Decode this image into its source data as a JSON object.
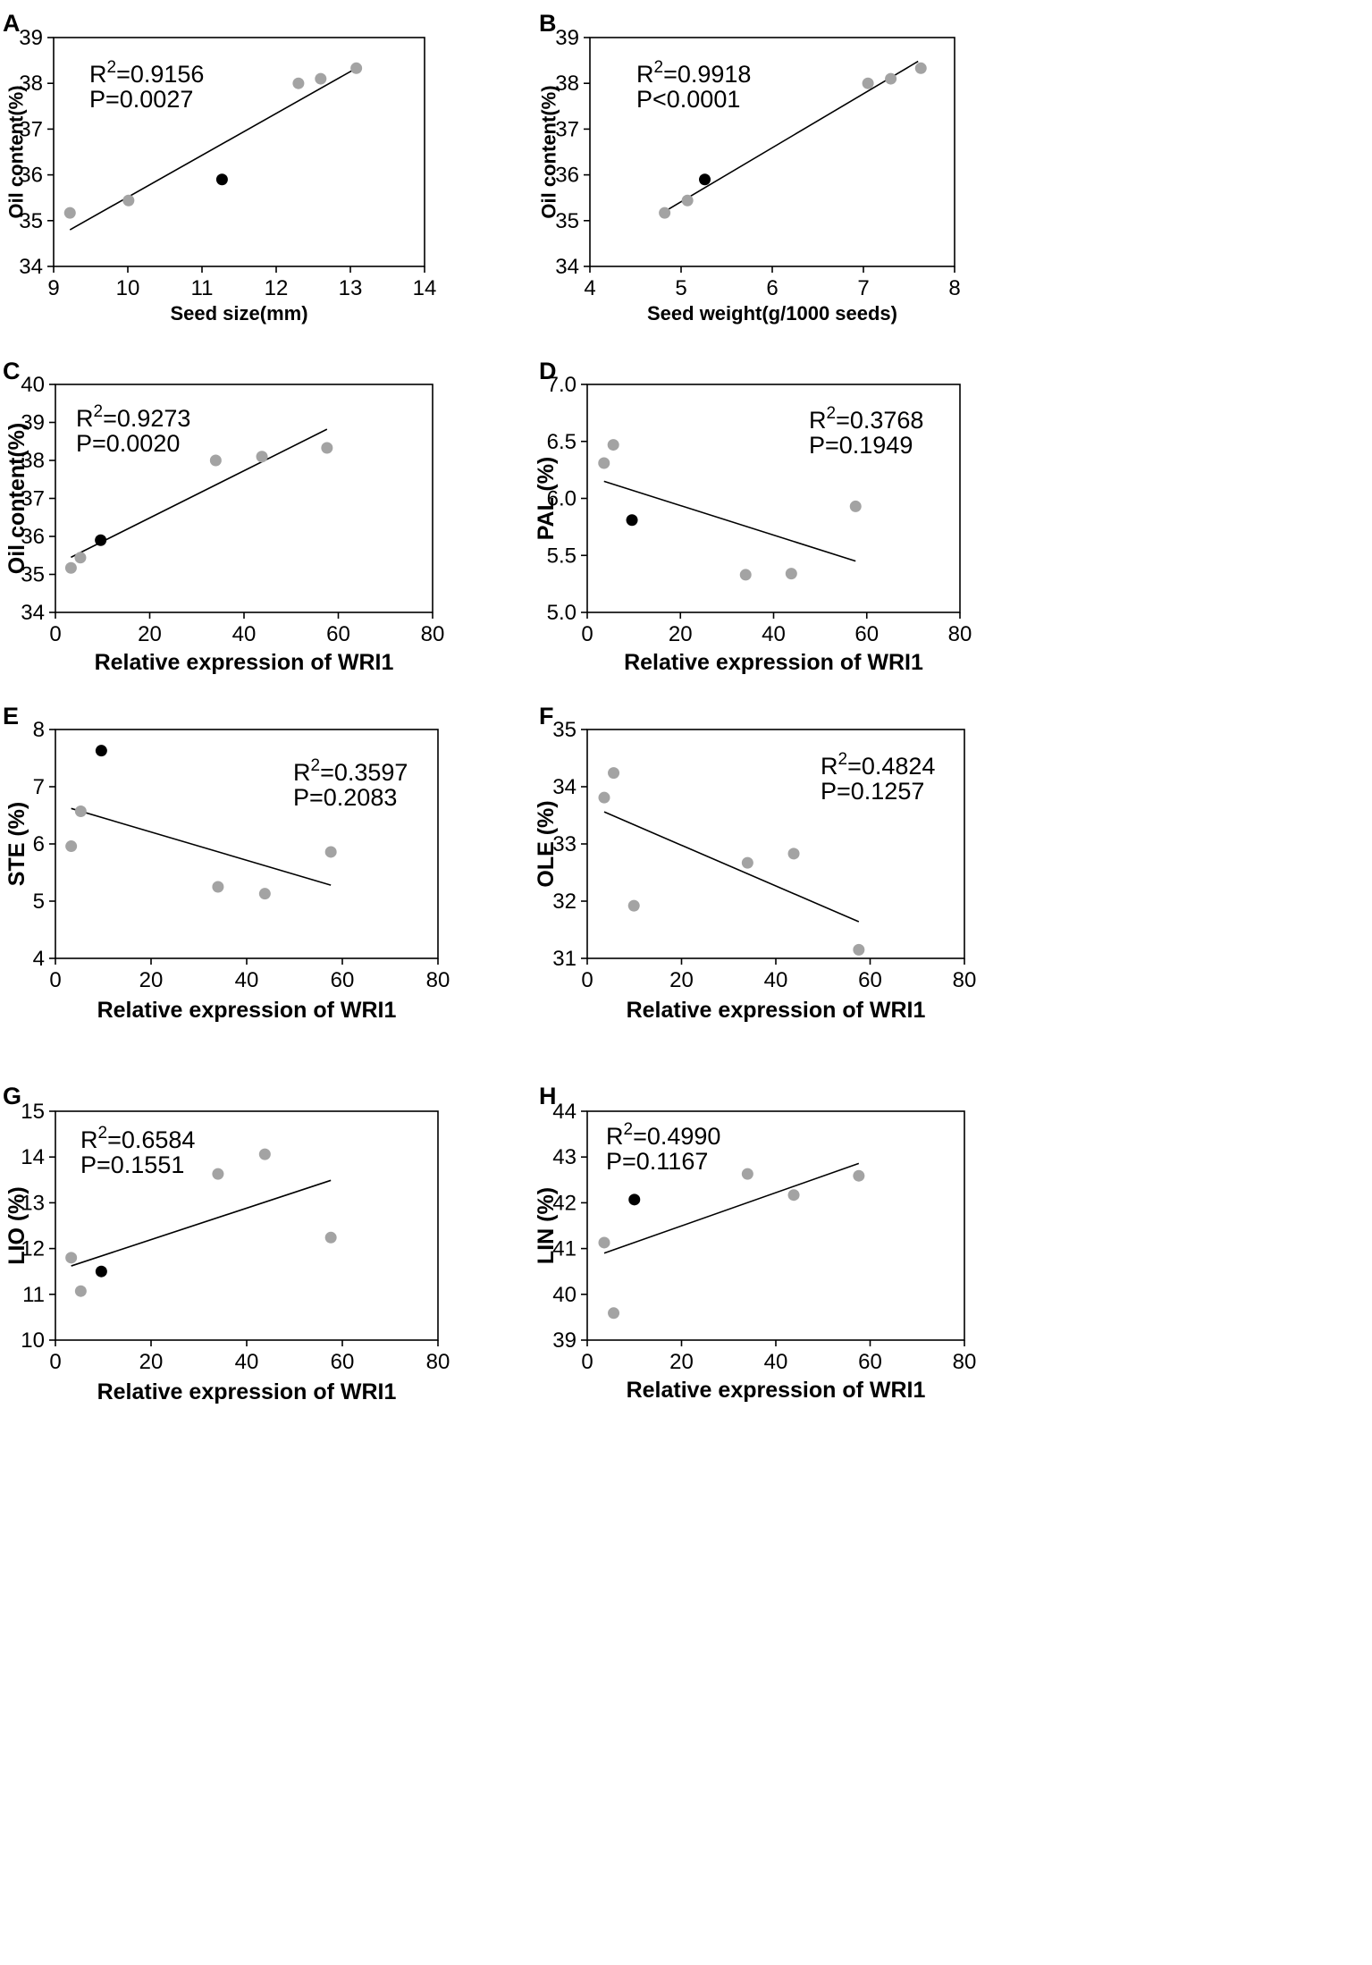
{
  "figure": {
    "colors": {
      "gray_point": "#a3a3a3",
      "black_point": "#000000",
      "axis": "#000000",
      "line": "#000000"
    }
  },
  "chart_data": [
    {
      "panel": "A",
      "type": "scatter",
      "xlabel": "Seed size(mm)",
      "ylabel": "Oil content(%)",
      "xlim": [
        9,
        14
      ],
      "ylim": [
        34,
        39
      ],
      "xticks": [
        9,
        10,
        11,
        12,
        13,
        14
      ],
      "yticks": [
        34,
        35,
        36,
        37,
        38,
        39
      ],
      "points": [
        {
          "x": 9.22,
          "y": 35.17,
          "highlight": false
        },
        {
          "x": 10.01,
          "y": 35.44,
          "highlight": false
        },
        {
          "x": 11.27,
          "y": 35.9,
          "highlight": true
        },
        {
          "x": 12.3,
          "y": 38.0,
          "highlight": false
        },
        {
          "x": 12.6,
          "y": 38.1,
          "highlight": false
        },
        {
          "x": 13.08,
          "y": 38.33,
          "highlight": false
        }
      ],
      "fit": {
        "x1": 9.22,
        "y1": 34.8,
        "x2": 13.08,
        "y2": 38.33
      },
      "r2_label": "R²=0.9156",
      "p_label": "P=0.0027"
    },
    {
      "panel": "B",
      "type": "scatter",
      "xlabel": "Seed weight(g/1000 seeds)",
      "ylabel": "Oil content(%)",
      "xlim": [
        4,
        8
      ],
      "ylim": [
        34,
        39
      ],
      "xticks": [
        4,
        5,
        6,
        7,
        8
      ],
      "yticks": [
        34,
        35,
        36,
        37,
        38,
        39
      ],
      "points": [
        {
          "x": 4.82,
          "y": 35.17,
          "highlight": false
        },
        {
          "x": 5.07,
          "y": 35.44,
          "highlight": false
        },
        {
          "x": 5.26,
          "y": 35.9,
          "highlight": true
        },
        {
          "x": 7.05,
          "y": 38.0,
          "highlight": false
        },
        {
          "x": 7.3,
          "y": 38.1,
          "highlight": false
        },
        {
          "x": 7.63,
          "y": 38.33,
          "highlight": false
        }
      ],
      "fit": {
        "x1": 4.82,
        "y1": 35.2,
        "x2": 7.6,
        "y2": 38.48
      },
      "r2_label": "R²=0.9918",
      "p_label": "P<0.0001"
    },
    {
      "panel": "C",
      "type": "scatter",
      "xlabel": "Relative expression of WRI1",
      "ylabel": "Oil content(%)",
      "xlim": [
        0,
        80
      ],
      "ylim": [
        34,
        40
      ],
      "xticks": [
        0,
        20,
        40,
        60,
        80
      ],
      "yticks": [
        34,
        35,
        36,
        37,
        38,
        39,
        40
      ],
      "points": [
        {
          "x": 3.3,
          "y": 35.17,
          "highlight": false
        },
        {
          "x": 5.3,
          "y": 35.44,
          "highlight": false
        },
        {
          "x": 9.6,
          "y": 35.9,
          "highlight": true
        },
        {
          "x": 34.0,
          "y": 38.0,
          "highlight": false
        },
        {
          "x": 43.8,
          "y": 38.1,
          "highlight": false
        },
        {
          "x": 57.6,
          "y": 38.33,
          "highlight": false
        }
      ],
      "fit": {
        "x1": 3.3,
        "y1": 35.45,
        "x2": 57.6,
        "y2": 38.82
      },
      "r2_label": "R²=0.9273",
      "p_label": "P=0.0020"
    },
    {
      "panel": "D",
      "type": "scatter",
      "xlabel": "Relative expression of WRI1",
      "ylabel": "PAL (%)",
      "xlim": [
        0,
        80
      ],
      "ylim": [
        5.0,
        7.0
      ],
      "xticks": [
        0,
        20,
        40,
        60,
        80
      ],
      "yticks": [
        5.0,
        5.5,
        6.0,
        6.5,
        7.0
      ],
      "ytick_decimals": 1,
      "points": [
        {
          "x": 3.6,
          "y": 6.31,
          "highlight": false
        },
        {
          "x": 5.6,
          "y": 6.47,
          "highlight": false
        },
        {
          "x": 9.6,
          "y": 5.81,
          "highlight": true
        },
        {
          "x": 34.0,
          "y": 5.33,
          "highlight": false
        },
        {
          "x": 43.8,
          "y": 5.34,
          "highlight": false
        },
        {
          "x": 57.6,
          "y": 5.93,
          "highlight": false
        }
      ],
      "fit": {
        "x1": 3.6,
        "y1": 6.15,
        "x2": 57.6,
        "y2": 5.45
      },
      "r2_label": "R²=0.3768",
      "p_label": "P=0.1949"
    },
    {
      "panel": "E",
      "type": "scatter",
      "xlabel": "Relative expression of WRI1",
      "ylabel": "STE (%)",
      "xlim": [
        0,
        80
      ],
      "ylim": [
        4,
        8
      ],
      "xticks": [
        0,
        20,
        40,
        60,
        80
      ],
      "yticks": [
        4,
        5,
        6,
        7,
        8
      ],
      "points": [
        {
          "x": 3.3,
          "y": 5.96,
          "highlight": false
        },
        {
          "x": 5.3,
          "y": 6.57,
          "highlight": false
        },
        {
          "x": 9.6,
          "y": 7.63,
          "highlight": true
        },
        {
          "x": 34.0,
          "y": 5.25,
          "highlight": false
        },
        {
          "x": 43.8,
          "y": 5.13,
          "highlight": false
        },
        {
          "x": 57.6,
          "y": 5.86,
          "highlight": false
        }
      ],
      "fit": {
        "x1": 3.3,
        "y1": 6.62,
        "x2": 57.6,
        "y2": 5.28
      },
      "r2_label": "R²=0.3597",
      "p_label": "P=0.2083"
    },
    {
      "panel": "F",
      "type": "scatter",
      "xlabel": "Relative expression of WRI1",
      "ylabel": "OLE (%)",
      "xlim": [
        0,
        80
      ],
      "ylim": [
        31,
        35
      ],
      "xticks": [
        0,
        20,
        40,
        60,
        80
      ],
      "yticks": [
        31,
        32,
        33,
        34,
        35
      ],
      "points": [
        {
          "x": 3.6,
          "y": 33.81,
          "highlight": false
        },
        {
          "x": 5.6,
          "y": 34.24,
          "highlight": false
        },
        {
          "x": 9.9,
          "y": 31.92,
          "highlight": false
        },
        {
          "x": 34.0,
          "y": 32.67,
          "highlight": false
        },
        {
          "x": 43.8,
          "y": 32.83,
          "highlight": false
        },
        {
          "x": 57.6,
          "y": 31.15,
          "highlight": false
        }
      ],
      "fit": {
        "x1": 3.6,
        "y1": 33.56,
        "x2": 57.6,
        "y2": 31.64
      },
      "r2_label": "R²=0.4824",
      "p_label": "P=0.1257"
    },
    {
      "panel": "G",
      "type": "scatter",
      "xlabel": "Relative expression of WRI1",
      "ylabel": "LIO (%)",
      "xlim": [
        0,
        80
      ],
      "ylim": [
        10,
        15
      ],
      "xticks": [
        0,
        20,
        40,
        60,
        80
      ],
      "yticks": [
        10,
        11,
        12,
        13,
        14,
        15
      ],
      "points": [
        {
          "x": 3.3,
          "y": 11.8,
          "highlight": false
        },
        {
          "x": 5.3,
          "y": 11.07,
          "highlight": false
        },
        {
          "x": 9.6,
          "y": 11.5,
          "highlight": true
        },
        {
          "x": 34.0,
          "y": 13.63,
          "highlight": false
        },
        {
          "x": 43.8,
          "y": 14.06,
          "highlight": false
        },
        {
          "x": 57.6,
          "y": 12.24,
          "highlight": false
        }
      ],
      "fit": {
        "x1": 3.3,
        "y1": 11.62,
        "x2": 57.6,
        "y2": 13.49
      },
      "r2_label": "R²=0.6584",
      "p_label": "P=0.1551"
    },
    {
      "panel": "H",
      "type": "scatter",
      "xlabel": "Relative expression of WRI1",
      "ylabel": "LIN (%)",
      "xlim": [
        0,
        80
      ],
      "ylim": [
        39,
        44
      ],
      "xticks": [
        0,
        20,
        40,
        60,
        80
      ],
      "yticks": [
        39,
        40,
        41,
        42,
        43,
        44
      ],
      "points": [
        {
          "x": 3.6,
          "y": 41.13,
          "highlight": false
        },
        {
          "x": 5.6,
          "y": 39.59,
          "highlight": false
        },
        {
          "x": 10.0,
          "y": 42.07,
          "highlight": true
        },
        {
          "x": 34.0,
          "y": 42.63,
          "highlight": false
        },
        {
          "x": 43.8,
          "y": 42.17,
          "highlight": false
        },
        {
          "x": 57.6,
          "y": 42.59,
          "highlight": false
        }
      ],
      "fit": {
        "x1": 3.6,
        "y1": 40.9,
        "x2": 57.6,
        "y2": 42.86
      },
      "r2_label": "R²=0.4990",
      "p_label": "P=0.1167"
    }
  ]
}
